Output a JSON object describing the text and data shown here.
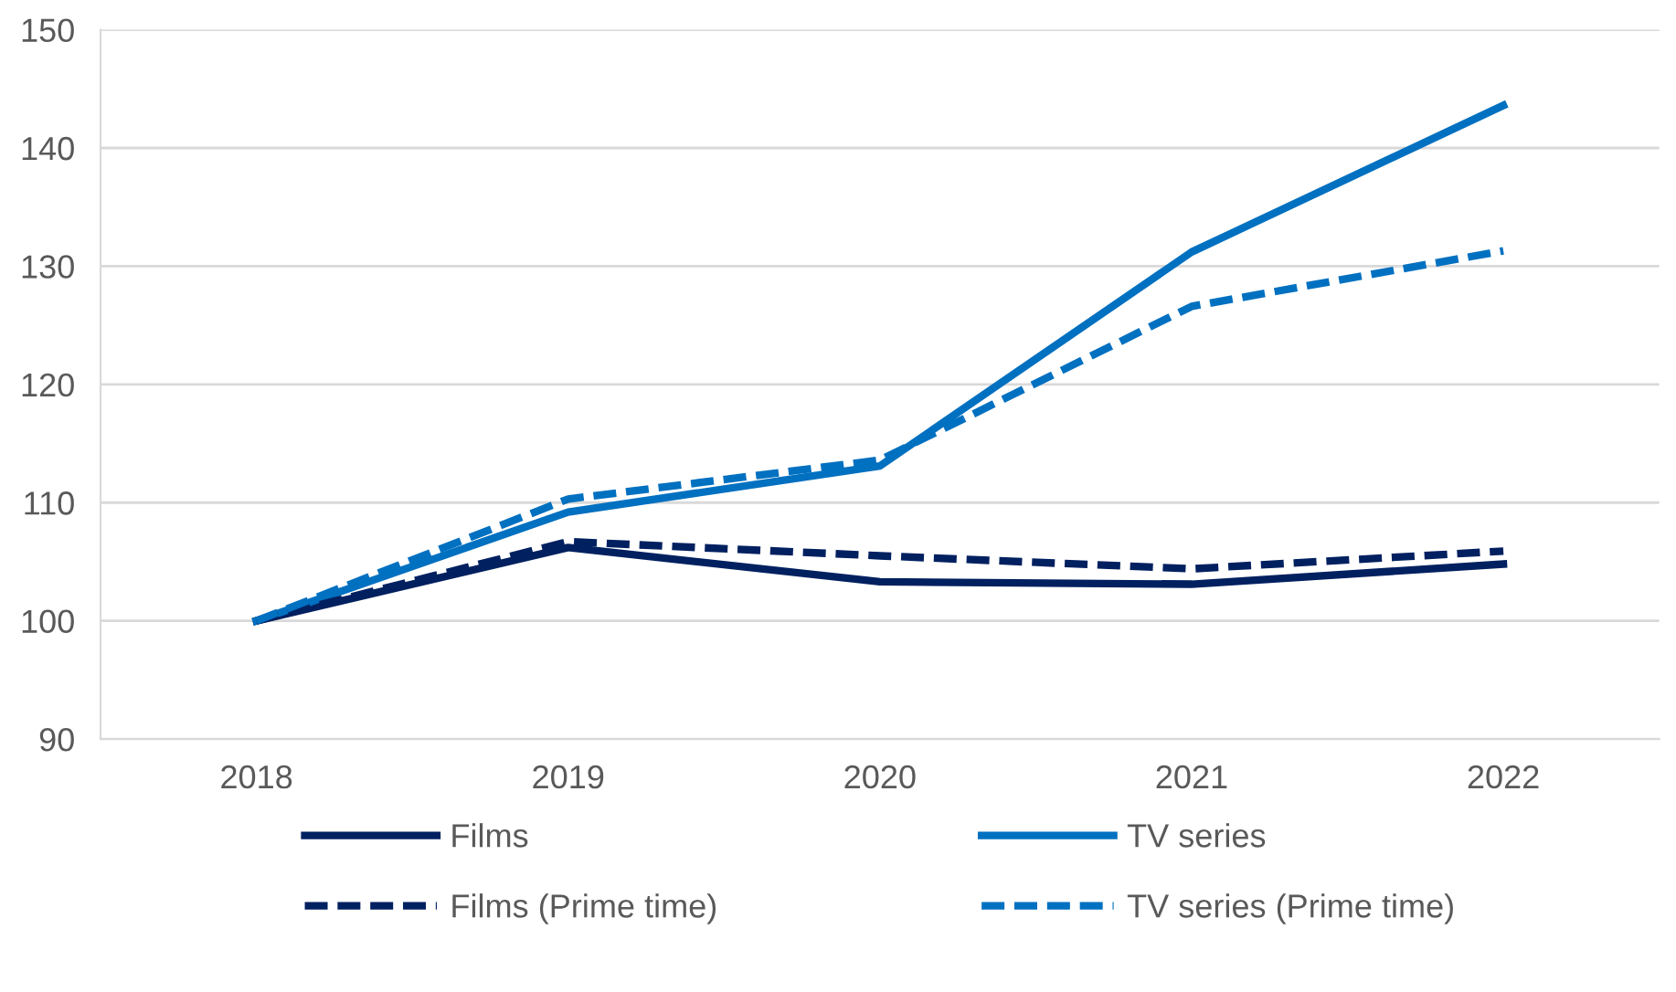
{
  "chart_data": {
    "type": "line",
    "categories": [
      "2018",
      "2019",
      "2020",
      "2021",
      "2022"
    ],
    "series": [
      {
        "name": "Films",
        "color": "#002060",
        "line_style": "solid",
        "values": [
          100,
          106.2,
          103.3,
          103.1,
          104.8
        ]
      },
      {
        "name": "TV series",
        "color": "#0070c0",
        "line_style": "solid",
        "values": [
          100,
          109.2,
          113.1,
          131.2,
          143.6
        ]
      },
      {
        "name": "Films (Prime time)",
        "color": "#002060",
        "line_style": "dashed",
        "values": [
          100,
          106.7,
          105.5,
          104.4,
          105.9
        ]
      },
      {
        "name": "TV series (Prime time)",
        "color": "#0070c0",
        "line_style": "dashed",
        "values": [
          100,
          110.3,
          113.6,
          126.6,
          131.3
        ]
      }
    ],
    "ylim": [
      90,
      150
    ],
    "yticks": [
      90,
      100,
      110,
      120,
      130,
      140,
      150
    ],
    "grid": "y",
    "legend": "bottom",
    "marker": "none"
  }
}
